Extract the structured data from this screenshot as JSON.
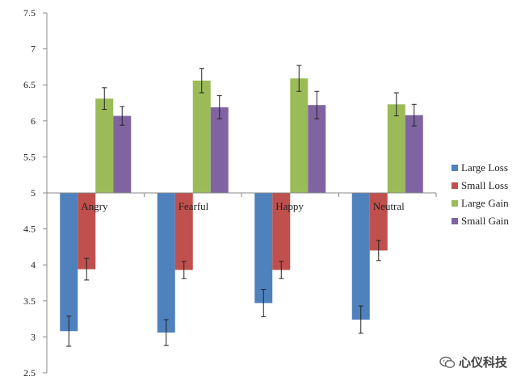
{
  "chart_data": {
    "type": "bar",
    "categories": [
      "Angry",
      "Fearful",
      "Happy",
      "Neutral"
    ],
    "baseline": 5,
    "ylim": [
      2.5,
      7.5
    ],
    "yticks": [
      "2.5",
      "3",
      "3.5",
      "4",
      "4.5",
      "5",
      "5.5",
      "6",
      "6.5",
      "7",
      "7.5"
    ],
    "legend_position": "right",
    "series": [
      {
        "name": "Large Loss",
        "color": "#4f81bd",
        "values": [
          3.08,
          3.06,
          3.47,
          3.24
        ],
        "errors": [
          0.21,
          0.18,
          0.19,
          0.19
        ]
      },
      {
        "name": "Small Loss",
        "color": "#c0504d",
        "values": [
          3.94,
          3.93,
          3.93,
          4.2
        ],
        "errors": [
          0.15,
          0.12,
          0.12,
          0.14
        ]
      },
      {
        "name": "Large Gain",
        "color": "#9bbb59",
        "values": [
          6.31,
          6.56,
          6.59,
          6.23
        ],
        "errors": [
          0.15,
          0.17,
          0.18,
          0.16
        ]
      },
      {
        "name": "Small Gain",
        "color": "#8064a2",
        "values": [
          6.07,
          6.19,
          6.22,
          6.08
        ],
        "errors": [
          0.13,
          0.16,
          0.19,
          0.15
        ]
      }
    ]
  },
  "watermark": {
    "text": "心仪科技",
    "icon": "wechat-icon"
  }
}
